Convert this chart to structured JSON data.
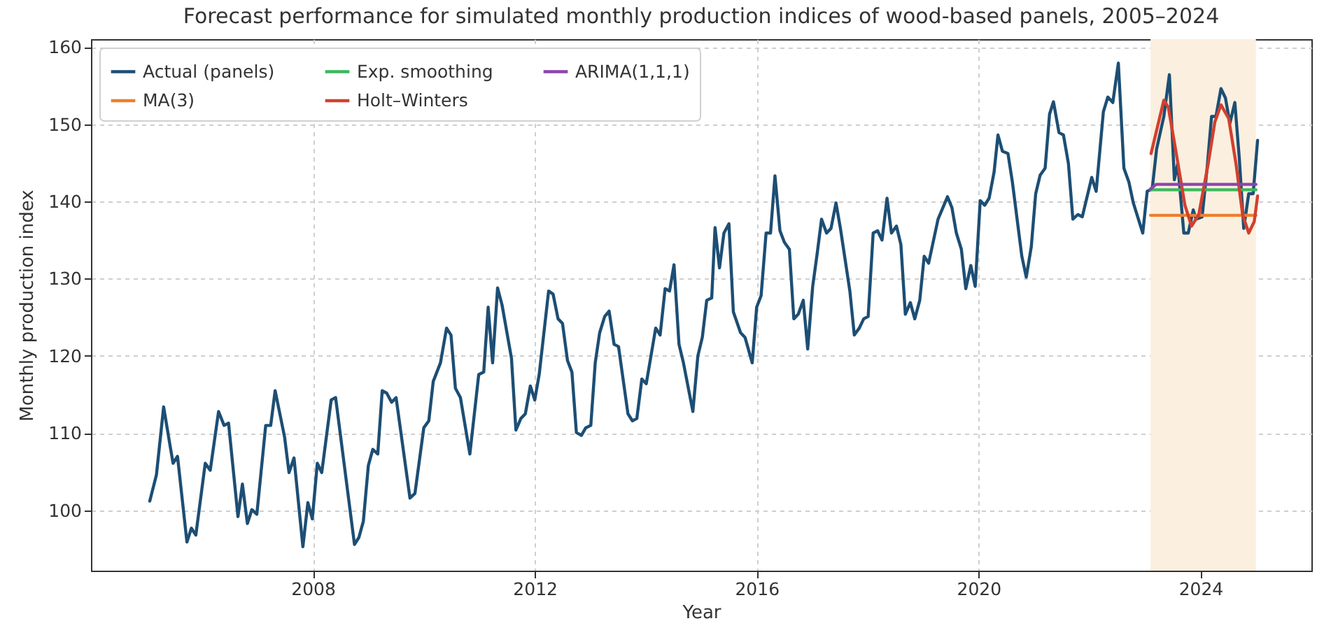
{
  "chart_data": {
    "type": "line",
    "title": "Forecast performance for simulated monthly production indices of wood-based panels, 2005–2024",
    "xlabel": "Year",
    "ylabel": "Monthly production index",
    "xlim": [
      2004,
      2026
    ],
    "xticks": [
      2008,
      2012,
      2016,
      2020,
      2024
    ],
    "ylim": [
      92.2,
      161
    ],
    "yticks": [
      100,
      110,
      120,
      130,
      140,
      150,
      160
    ],
    "grid": true,
    "legend": "top left",
    "bands": [
      {
        "axis": "x",
        "from": 2023.1,
        "to": 2025.0,
        "color": "#fbefdf"
      }
    ],
    "series": [
      {
        "name": "Actual (panels)",
        "color": "#1d4e74",
        "x": [
          2005.06,
          2005.18,
          2005.31,
          2005.43,
          2005.48,
          2005.56,
          2005.73,
          2005.81,
          2005.89,
          2006.06,
          2006.15,
          2006.3,
          2006.4,
          2006.48,
          2006.65,
          2006.73,
          2006.82,
          2006.9,
          2006.99,
          2007.15,
          2007.24,
          2007.32,
          2007.49,
          2007.57,
          2007.66,
          2007.82,
          2007.91,
          2007.99,
          2008.08,
          2008.16,
          2008.33,
          2008.41,
          2008.75,
          2008.83,
          2008.91,
          2009.0,
          2009.08,
          2009.17,
          2009.25,
          2009.33,
          2009.42,
          2009.5,
          2009.75,
          2009.84,
          2010.0,
          2010.09,
          2010.17,
          2010.3,
          2010.41,
          2010.49,
          2010.57,
          2010.66,
          2010.83,
          2010.99,
          2011.08,
          2011.16,
          2011.24,
          2011.33,
          2011.41,
          2011.58,
          2011.66,
          2011.75,
          2011.83,
          2011.92,
          2012.0,
          2012.08,
          2012.25,
          2012.33,
          2012.42,
          2012.5,
          2012.59,
          2012.67,
          2012.75,
          2012.84,
          2012.92,
          2013.01,
          2013.09,
          2013.17,
          2013.26,
          2013.34,
          2013.43,
          2013.51,
          2013.68,
          2013.76,
          2013.84,
          2013.93,
          2014.01,
          2014.18,
          2014.26,
          2014.35,
          2014.43,
          2014.51,
          2014.6,
          2014.68,
          2014.85,
          2014.94,
          2015.02,
          2015.1,
          2015.19,
          2015.25,
          2015.33,
          2015.41,
          2015.5,
          2015.58,
          2015.71,
          2015.79,
          2015.92,
          2016.0,
          2016.08,
          2016.17,
          2016.25,
          2016.33,
          2016.42,
          2016.5,
          2016.59,
          2016.67,
          2016.75,
          2016.84,
          2016.92,
          2017.01,
          2017.09,
          2017.17,
          2017.26,
          2017.34,
          2017.43,
          2017.51,
          2017.68,
          2017.76,
          2017.85,
          2017.93,
          2018.01,
          2018.1,
          2018.18,
          2018.26,
          2018.35,
          2018.43,
          2018.52,
          2018.6,
          2018.68,
          2018.77,
          2018.85,
          2018.94,
          2019.02,
          2019.1,
          2019.27,
          2019.44,
          2019.52,
          2019.6,
          2019.69,
          2019.77,
          2019.86,
          2019.94,
          2020.03,
          2020.11,
          2020.19,
          2020.28,
          2020.35,
          2020.43,
          2020.53,
          2020.61,
          2020.78,
          2020.86,
          2020.95,
          2021.03,
          2021.11,
          2021.2,
          2021.28,
          2021.35,
          2021.45,
          2021.53,
          2021.62,
          2021.7,
          2021.79,
          2021.87,
          2022.04,
          2022.12,
          2022.25,
          2022.33,
          2022.42,
          2022.52,
          2022.62,
          2022.71,
          2022.79,
          2022.96,
          2023.04,
          2023.13,
          2023.21,
          2023.34,
          2023.44,
          2023.53,
          2023.59,
          2023.7,
          2023.78,
          2023.87,
          2023.92,
          2024.03,
          2024.12,
          2024.2,
          2024.28,
          2024.37,
          2024.45,
          2024.53,
          2024.62,
          2024.7,
          2024.78,
          2024.87,
          2024.95,
          2025.03
        ],
        "values": [
          101.2,
          104.6,
          113.4,
          108.2,
          106.1,
          107.0,
          95.9,
          97.7,
          96.8,
          106.1,
          105.2,
          112.8,
          111.0,
          111.3,
          99.2,
          103.4,
          98.3,
          100.1,
          99.5,
          111.0,
          111.0,
          115.5,
          109.5,
          104.9,
          106.8,
          95.3,
          101.0,
          98.9,
          106.1,
          104.9,
          114.3,
          114.6,
          95.6,
          96.5,
          98.6,
          105.8,
          107.9,
          107.3,
          115.5,
          115.2,
          114.0,
          114.6,
          101.6,
          102.2,
          110.7,
          111.6,
          116.7,
          119.1,
          123.6,
          122.7,
          115.8,
          114.6,
          107.3,
          117.6,
          117.9,
          126.3,
          119.1,
          128.8,
          126.6,
          119.7,
          110.4,
          111.9,
          112.5,
          116.1,
          114.3,
          117.6,
          128.4,
          128.0,
          124.8,
          124.2,
          119.4,
          117.9,
          110.1,
          109.7,
          110.7,
          111.0,
          119.1,
          123.0,
          125.1,
          125.8,
          121.5,
          121.2,
          112.5,
          111.6,
          111.9,
          117.0,
          116.4,
          123.6,
          122.7,
          128.7,
          128.4,
          131.8,
          121.5,
          119.1,
          112.8,
          120.0,
          122.4,
          127.2,
          127.5,
          136.6,
          131.4,
          135.9,
          137.1,
          125.7,
          123.0,
          122.4,
          119.1,
          126.3,
          127.8,
          135.9,
          135.9,
          143.3,
          136.2,
          134.7,
          133.8,
          124.8,
          125.4,
          127.2,
          120.9,
          129.0,
          133.2,
          137.7,
          135.9,
          136.5,
          139.8,
          136.5,
          128.4,
          122.7,
          123.6,
          124.8,
          125.1,
          135.9,
          136.2,
          135.0,
          140.4,
          135.9,
          136.8,
          134.4,
          125.4,
          126.9,
          124.8,
          127.2,
          132.9,
          132.0,
          137.7,
          140.6,
          139.2,
          135.9,
          133.8,
          128.7,
          131.7,
          129.0,
          140.1,
          139.5,
          140.4,
          143.8,
          148.6,
          146.5,
          146.2,
          142.5,
          132.9,
          130.2,
          134.1,
          141.0,
          143.4,
          144.3,
          151.3,
          152.9,
          148.9,
          148.6,
          144.9,
          137.7,
          138.3,
          138.0,
          143.1,
          141.3,
          151.6,
          153.5,
          152.8,
          157.9,
          144.3,
          142.5,
          139.8,
          135.9,
          141.3,
          141.6,
          146.8,
          151.0,
          156.4,
          142.8,
          144.9,
          135.9,
          135.9,
          138.9,
          137.7,
          138.0,
          144.3,
          151.0,
          151.0,
          154.6,
          153.4,
          150.1,
          152.8,
          145.6,
          136.5,
          141.0,
          141.0,
          147.9
        ]
      },
      {
        "name": "MA(3)",
        "color": "#ee7f2d",
        "x": [
          2023.1,
          2025.0
        ],
        "values": [
          138.2,
          138.2
        ]
      },
      {
        "name": "Exp. smoothing",
        "color": "#3bb85e",
        "x": [
          2023.1,
          2025.0
        ],
        "values": [
          141.5,
          141.5
        ]
      },
      {
        "name": "Holt–Winters",
        "color": "#d2402f",
        "x": [
          2023.11,
          2023.34,
          2023.42,
          2023.55,
          2023.72,
          2023.84,
          2023.97,
          2024.14,
          2024.26,
          2024.37,
          2024.51,
          2024.64,
          2024.76,
          2024.87,
          2024.97,
          2025.03
        ],
        "values": [
          146.2,
          153.1,
          152.2,
          146.8,
          139.5,
          136.8,
          138.3,
          144.9,
          150.3,
          152.5,
          150.7,
          144.9,
          138.3,
          135.9,
          137.4,
          140.7
        ]
      },
      {
        "name": "ARIMA(1,1,1)",
        "color": "#8e44ad",
        "x": [
          2023.1,
          2023.2,
          2025.0
        ],
        "values": [
          141.6,
          142.2,
          142.2
        ]
      }
    ]
  }
}
